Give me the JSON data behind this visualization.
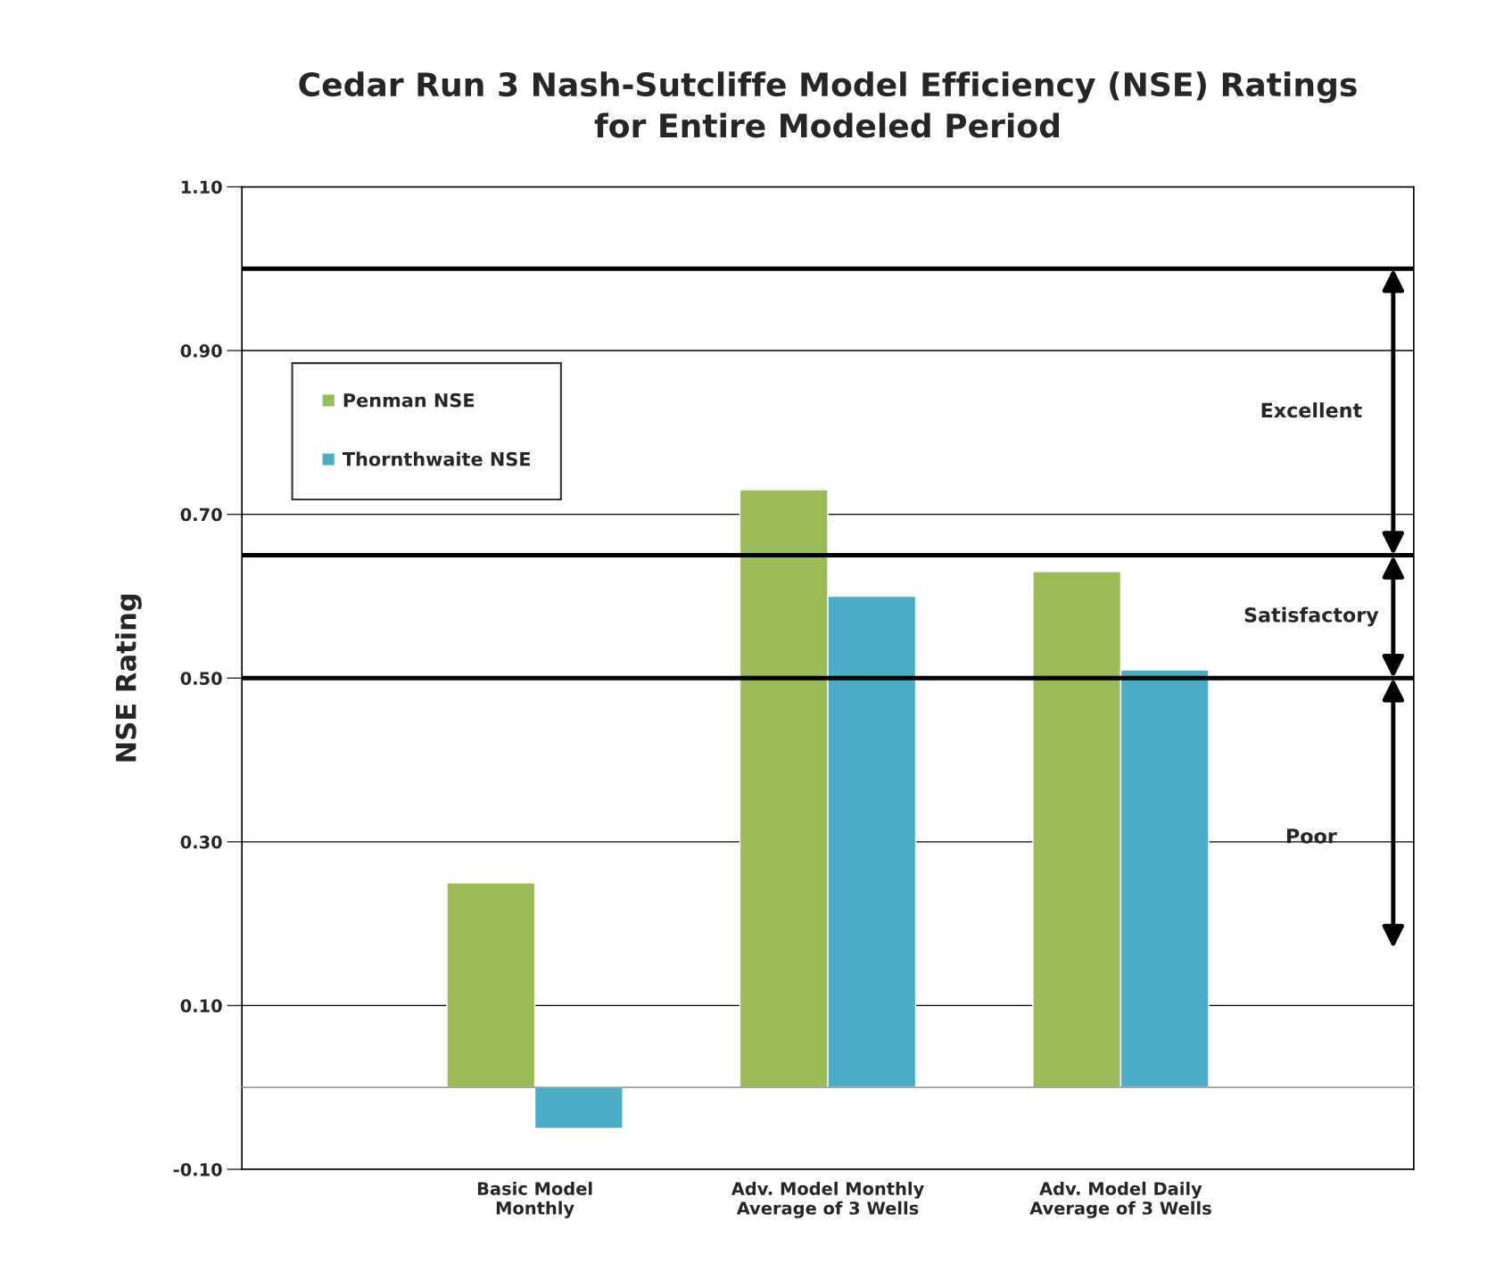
{
  "chart_data": {
    "type": "bar",
    "title": "Cedar Run 3 Nash-Sutcliffe Model Efficiency (NSE) Ratings\nfor Entire Modeled Period",
    "ylabel": "NSE Rating",
    "categories": [
      "Basic Model\nMonthly",
      "Adv. Model Monthly\nAverage of 3 Wells",
      "Adv. Model Daily\nAverage of 3 Wells"
    ],
    "series": [
      {
        "name": "Penman NSE",
        "color": "#9bbb59",
        "values": [
          0.25,
          0.73,
          0.63
        ]
      },
      {
        "name": "Thornthwaite NSE",
        "color": "#4bacc6",
        "values": [
          -0.05,
          0.6,
          0.51
        ]
      }
    ],
    "ylim": [
      -0.1,
      1.1
    ],
    "yticks": [
      {
        "value": -0.1,
        "label": "-0.10"
      },
      {
        "value": 0.1,
        "label": "0.10"
      },
      {
        "value": 0.3,
        "label": "0.30"
      },
      {
        "value": 0.5,
        "label": "0.50"
      },
      {
        "value": 0.7,
        "label": "0.70"
      },
      {
        "value": 0.9,
        "label": "0.90"
      },
      {
        "value": 1.1,
        "label": "1.10"
      }
    ],
    "ref_lines": [
      {
        "axis": "y",
        "value": 1.0,
        "color": "#000000"
      },
      {
        "axis": "y",
        "value": 0.65,
        "color": "#000000"
      },
      {
        "axis": "y",
        "value": 0.5,
        "color": "#000000"
      },
      {
        "axis": "y",
        "value": 0,
        "color": "#a0a0a0"
      }
    ],
    "annotations": [
      "Excellent",
      "Satisfactory",
      "Poor"
    ],
    "grid": "y",
    "legend": "top left"
  }
}
